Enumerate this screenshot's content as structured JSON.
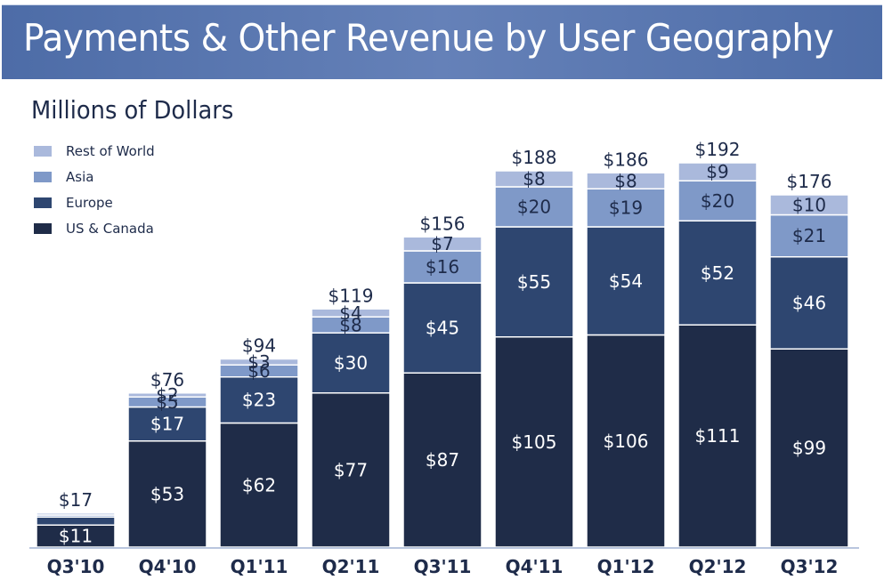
{
  "header": {
    "title": "Payments & Other Revenue by User Geography"
  },
  "chart_data": {
    "type": "bar",
    "stacked": true,
    "title": "Payments & Other Revenue by User Geography",
    "subtitle": "Millions of Dollars",
    "xlabel": "",
    "ylabel": "Millions of Dollars",
    "ylim": [
      0,
      200
    ],
    "grid": false,
    "legend_position": "top-left",
    "currency_prefix": "$",
    "categories": [
      "Q3'10",
      "Q4'10",
      "Q1'11",
      "Q2'11",
      "Q3'11",
      "Q4'11",
      "Q1'12",
      "Q2'12",
      "Q3'12"
    ],
    "series": [
      {
        "name": "US & Canada",
        "color": "#1f2c48",
        "label_color": "#ffffff",
        "values": [
          11,
          53,
          62,
          77,
          87,
          105,
          106,
          111,
          99
        ]
      },
      {
        "name": "Europe",
        "color": "#2e4670",
        "label_color": "#ffffff",
        "values": [
          4,
          17,
          23,
          30,
          45,
          55,
          54,
          52,
          46
        ]
      },
      {
        "name": "Asia",
        "color": "#7f99c8",
        "label_color": "#1e2b4a",
        "values": [
          1,
          5,
          6,
          8,
          16,
          20,
          19,
          20,
          21
        ]
      },
      {
        "name": "Rest of World",
        "color": "#aab9dc",
        "label_color": "#1e2b4a",
        "values": [
          1,
          2,
          3,
          4,
          7,
          8,
          8,
          9,
          10
        ]
      }
    ],
    "data_labels": {
      "US & Canada": [
        "$11",
        "$53",
        "$62",
        "$77",
        "$87",
        "$105",
        "$106",
        "$111",
        "$99"
      ],
      "Europe": [
        "",
        "$17",
        "$23",
        "$30",
        "$45",
        "$55",
        "$54",
        "$52",
        "$46"
      ],
      "Asia": [
        "",
        "$5",
        "$6",
        "$8",
        "$16",
        "$20",
        "$19",
        "$20",
        "$21"
      ],
      "Rest of World": [
        "",
        "$2",
        "$3",
        "$4",
        "$7",
        "$8",
        "$8",
        "$9",
        "$10"
      ]
    },
    "totals": [
      "$17",
      "$76",
      "$94",
      "$119",
      "$156",
      "$188",
      "$186",
      "$192",
      "$176"
    ]
  },
  "legend": {
    "items": [
      {
        "label": "Rest of World",
        "color": "#aab9dc"
      },
      {
        "label": "Asia",
        "color": "#7f99c8"
      },
      {
        "label": "Europe",
        "color": "#2e4670"
      },
      {
        "label": "US & Canada",
        "color": "#1f2c48"
      }
    ]
  }
}
